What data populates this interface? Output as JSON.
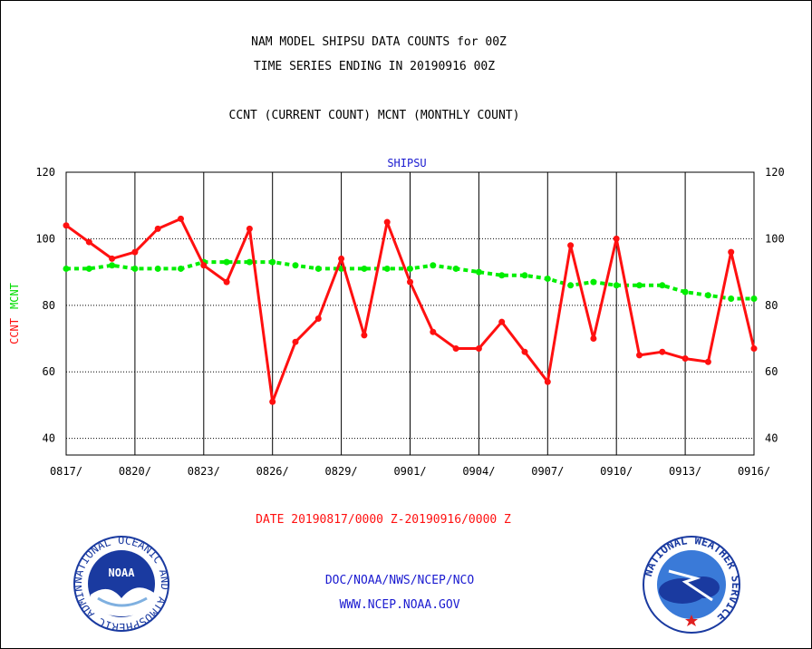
{
  "header": {
    "line1": "NAM MODEL SHIPSU DATA COUNTS for 00Z",
    "line2": "TIME SERIES ENDING IN 20190916 00Z",
    "line3": "CCNT (CURRENT COUNT) MCNT (MONTHLY COUNT)"
  },
  "footer": {
    "date_range": "DATE 20190817/0000 Z-20190916/0000 Z",
    "org": "DOC/NOAA/NWS/NCEP/NCO",
    "url": "WWW.NCEP.NOAA.GOV",
    "noaa_logo_text": "NOAA",
    "noaa_ring_text": "NATIONAL OCEANIC AND ATMOSPHERIC ADMINISTRATION · U.S. DEPARTMENT OF COMMERCE",
    "nws_ring_text": "NATIONAL WEATHER SERVICE"
  },
  "colors": {
    "ccnt": "#ff1010",
    "mcnt": "#00ee00",
    "title": "#1a1ad0",
    "axis": "#000000"
  },
  "chart_data": {
    "type": "line",
    "title": "SHIPSU",
    "ylabel_parts": [
      "CCNT",
      "MCNT"
    ],
    "ylim": [
      35,
      120
    ],
    "yticks": [
      40,
      60,
      80,
      100,
      120
    ],
    "x_tick_labels": [
      "0817/",
      "0820/",
      "0823/",
      "0826/",
      "0829/",
      "0901/",
      "0904/",
      "0907/",
      "0910/",
      "0913/",
      "0916/"
    ],
    "x": [
      "0817",
      "0818",
      "0819",
      "0820",
      "0821",
      "0822",
      "0823",
      "0824",
      "0825",
      "0826",
      "0827",
      "0828",
      "0829",
      "0830",
      "0831",
      "0901",
      "0902",
      "0903",
      "0904",
      "0905",
      "0906",
      "0907",
      "0908",
      "0909",
      "0910",
      "0911",
      "0912",
      "0913",
      "0914",
      "0915",
      "0916"
    ],
    "grid": true,
    "series": [
      {
        "name": "CCNT",
        "style": "solid",
        "values": [
          104,
          99,
          94,
          96,
          103,
          106,
          92,
          87,
          103,
          51,
          69,
          76,
          94,
          71,
          105,
          87,
          72,
          67,
          67,
          75,
          66,
          57,
          98,
          70,
          100,
          65,
          66,
          64,
          63,
          96,
          67
        ]
      },
      {
        "name": "MCNT",
        "style": "dashed",
        "values": [
          91,
          91,
          92,
          91,
          91,
          91,
          93,
          93,
          93,
          93,
          92,
          91,
          91,
          91,
          91,
          91,
          92,
          91,
          90,
          89,
          89,
          88,
          86,
          87,
          86,
          86,
          86,
          84,
          83,
          82,
          82
        ]
      }
    ]
  }
}
